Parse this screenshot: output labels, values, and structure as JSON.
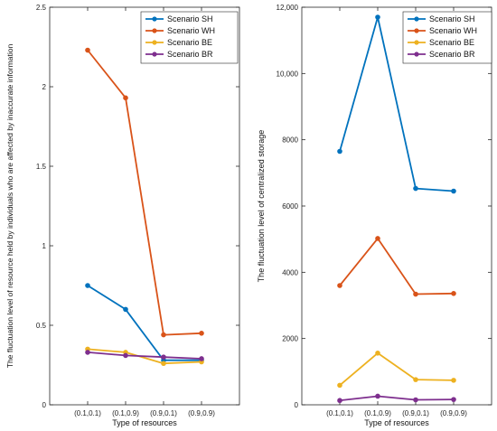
{
  "chart_data": [
    {
      "type": "line",
      "categories": [
        "(0.1,0.1)",
        "(0.1,0.9)",
        "(0.9,0.1)",
        "(0.9,0.9)"
      ],
      "series": [
        {
          "name": "Scenario SH",
          "color": "#0072BD",
          "values": [
            0.75,
            0.6,
            0.28,
            0.28
          ]
        },
        {
          "name": "Scenario WH",
          "color": "#D95319",
          "values": [
            2.23,
            1.93,
            0.44,
            0.45
          ]
        },
        {
          "name": "Scenario BE",
          "color": "#EDB120",
          "values": [
            0.35,
            0.33,
            0.26,
            0.27
          ]
        },
        {
          "name": "Scenario BR",
          "color": "#7E2F8E",
          "values": [
            0.33,
            0.31,
            0.3,
            0.29
          ]
        }
      ],
      "xlabel": "Type of resources",
      "ylabel": "The fluctuation level of resource held by individuals who are affected by inaccurate information",
      "ylim": [
        0,
        2.5
      ],
      "yticks": [
        0,
        0.5,
        1,
        1.5,
        2,
        2.5
      ],
      "ytick_labels": [
        "0",
        "0.5",
        "1",
        "1.5",
        "2",
        "2.5"
      ],
      "legend_position": "top-right",
      "grid": false
    },
    {
      "type": "line",
      "categories": [
        "(0.1,0.1)",
        "(0.1,0.9)",
        "(0.9,0.1)",
        "(0.9,0.9)"
      ],
      "series": [
        {
          "name": "Scenario SH",
          "color": "#0072BD",
          "values": [
            7650,
            11700,
            6530,
            6450
          ]
        },
        {
          "name": "Scenario WH",
          "color": "#D95319",
          "values": [
            3600,
            5020,
            3340,
            3360
          ]
        },
        {
          "name": "Scenario BE",
          "color": "#EDB120",
          "values": [
            590,
            1560,
            760,
            740
          ]
        },
        {
          "name": "Scenario BR",
          "color": "#7E2F8E",
          "values": [
            130,
            260,
            150,
            160
          ]
        }
      ],
      "xlabel": "Type of resources",
      "ylabel": "The fluctuation level of centralized storage",
      "ylim": [
        0,
        12000
      ],
      "yticks": [
        0,
        2000,
        4000,
        6000,
        8000,
        10000,
        12000
      ],
      "ytick_labels": [
        "0",
        "2000",
        "4000",
        "6000",
        "8000",
        "10,000",
        "12,000"
      ],
      "legend_position": "top-right",
      "grid": false
    }
  ]
}
